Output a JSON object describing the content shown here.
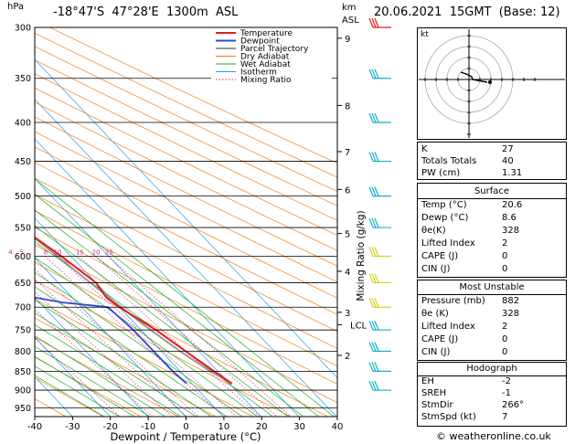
{
  "header": {
    "hpa_label": "hPa",
    "location": "-18°47'S  47°28'E  1300m  ASL",
    "km_label": "km",
    "asl_label": "ASL",
    "datetime": "20.06.2021  15GMT  (Base: 12)",
    "credit": "© weatheronline.co.uk"
  },
  "chart_data": {
    "type": "line",
    "pressure_levels": [
      300,
      350,
      400,
      450,
      500,
      550,
      600,
      650,
      700,
      750,
      800,
      850,
      900,
      950
    ],
    "x_ticks": [
      -40,
      -30,
      -20,
      -10,
      0,
      10,
      20,
      30,
      40
    ],
    "xlabel": "Dewpoint / Temperature (°C)",
    "ylabel_right": "Mixing Ratio (g/kg)",
    "xlim": [
      -40,
      40
    ],
    "ylim": [
      300,
      975
    ],
    "km_ticks": [
      {
        "label": "9",
        "p": 310
      },
      {
        "label": "8",
        "p": 380
      },
      {
        "label": "7",
        "p": 437
      },
      {
        "label": "6",
        "p": 490
      },
      {
        "label": "5",
        "p": 560
      },
      {
        "label": "4",
        "p": 628
      },
      {
        "label": "3",
        "p": 711
      },
      {
        "label": "2",
        "p": 810
      }
    ],
    "lcl": {
      "label": "LCL",
      "p": 738
    },
    "mixing_ratio_labels": [
      "1",
      "2",
      "3",
      "4",
      "5",
      "8",
      "10",
      "15",
      "20",
      "25"
    ],
    "legend": [
      "Temperature",
      "Dewpoint",
      "Parcel Trajectory",
      "Dry Adiabat",
      "Wet Adiabat",
      "Isotherm",
      "Mixing Ratio"
    ],
    "colors": {
      "temperature": "#e8191c",
      "dewpoint": "#2b46e0",
      "parcel": "#999999",
      "dry": "#f08020",
      "wet": "#20b020",
      "iso": "#20a0e8",
      "mix": "#e0208c",
      "wind": "#10b0c8"
    },
    "temperature": [
      {
        "p": 300,
        "t": -10
      },
      {
        "p": 320,
        "t": -14
      },
      {
        "p": 350,
        "t": -15
      },
      {
        "p": 400,
        "t": -10
      },
      {
        "p": 450,
        "t": -4.5
      },
      {
        "p": 500,
        "t": 0
      },
      {
        "p": 550,
        "t": 4
      },
      {
        "p": 600,
        "t": 7.5
      },
      {
        "p": 650,
        "t": 10
      },
      {
        "p": 680,
        "t": 9
      },
      {
        "p": 700,
        "t": 10
      },
      {
        "p": 750,
        "t": 14
      },
      {
        "p": 800,
        "t": 16.5
      },
      {
        "p": 850,
        "t": 19
      },
      {
        "p": 882,
        "t": 20.6
      }
    ],
    "dewpoint": [
      {
        "p": 300,
        "t": -24
      },
      {
        "p": 320,
        "t": -23
      },
      {
        "p": 350,
        "t": -15
      },
      {
        "p": 400,
        "t": -20
      },
      {
        "p": 450,
        "t": -27
      },
      {
        "p": 500,
        "t": -33
      },
      {
        "p": 550,
        "t": -35
      },
      {
        "p": 600,
        "t": -17
      },
      {
        "p": 620,
        "t": -11
      },
      {
        "p": 650,
        "t": -28
      },
      {
        "p": 690,
        "t": -4
      },
      {
        "p": 700,
        "t": 7
      },
      {
        "p": 750,
        "t": 8
      },
      {
        "p": 800,
        "t": 8
      },
      {
        "p": 850,
        "t": 8
      },
      {
        "p": 882,
        "t": 8.6
      }
    ],
    "parcel": [
      {
        "p": 300,
        "t": -21
      },
      {
        "p": 350,
        "t": -13
      },
      {
        "p": 400,
        "t": -7
      },
      {
        "p": 450,
        "t": -2.5
      },
      {
        "p": 500,
        "t": 1
      },
      {
        "p": 550,
        "t": 4
      },
      {
        "p": 600,
        "t": 6.5
      },
      {
        "p": 650,
        "t": 8.5
      },
      {
        "p": 700,
        "t": 10.5
      },
      {
        "p": 738,
        "t": 12
      },
      {
        "p": 800,
        "t": 15
      },
      {
        "p": 850,
        "t": 18
      },
      {
        "p": 882,
        "t": 20.6
      }
    ]
  },
  "hodograph": {
    "label": "kt"
  },
  "indices": [
    {
      "k": "K",
      "v": "27"
    },
    {
      "k": "Totals Totals",
      "v": "40"
    },
    {
      "k": "PW (cm)",
      "v": "1.31"
    }
  ],
  "surface": {
    "title": "Surface",
    "rows": [
      {
        "k": "Temp (°C)",
        "v": "20.6"
      },
      {
        "k": "Dewp (°C)",
        "v": "8.6"
      },
      {
        "k": "θe(K)",
        "v": "328"
      },
      {
        "k": "Lifted Index",
        "v": "2"
      },
      {
        "k": "CAPE (J)",
        "v": "0"
      },
      {
        "k": "CIN (J)",
        "v": "0"
      }
    ]
  },
  "most_unstable": {
    "title": "Most Unstable",
    "rows": [
      {
        "k": "Pressure (mb)",
        "v": "882"
      },
      {
        "k": "θe (K)",
        "v": "328"
      },
      {
        "k": "Lifted Index",
        "v": "2"
      },
      {
        "k": "CAPE (J)",
        "v": "0"
      },
      {
        "k": "CIN (J)",
        "v": "0"
      }
    ]
  },
  "hodo_table": {
    "title": "Hodograph",
    "rows": [
      {
        "k": "EH",
        "v": "-2"
      },
      {
        "k": "SREH",
        "v": "-1"
      },
      {
        "k": "StmDir",
        "v": "266°"
      },
      {
        "k": "StmSpd (kt)",
        "v": "7"
      }
    ]
  }
}
